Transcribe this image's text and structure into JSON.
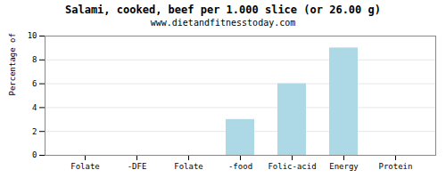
{
  "chart_data": {
    "type": "bar",
    "title": "Salami, cooked, beef per 1.000 slice (or 26.00 g)",
    "subtitle": "www.dietandfitnesstoday.com",
    "categories": [
      "Folate",
      "-DFE",
      "Folate",
      "-food",
      "Folic-acid",
      "Energy",
      "Protein"
    ],
    "values": [
      0,
      0,
      0,
      3,
      6,
      9,
      0
    ],
    "color": "#add8e6",
    "ylabel": "Percentage of RDH (%)",
    "ylim": [
      0,
      10
    ],
    "yticks": [
      0,
      2,
      4,
      6,
      8,
      10
    ],
    "grid": true
  }
}
